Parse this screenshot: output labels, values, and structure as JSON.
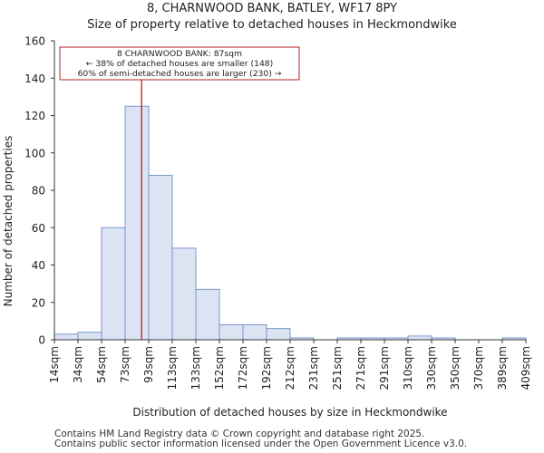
{
  "chart_data": {
    "type": "bar",
    "title": "8, CHARNWOOD BANK, BATLEY, WF17 8PY",
    "subtitle": "Size of property relative to detached houses in Heckmondwike",
    "xlabel": "Distribution of detached houses by size in Heckmondwike",
    "ylabel": "Number of detached properties",
    "ylim": [
      0,
      160
    ],
    "yticks": [
      0,
      20,
      40,
      60,
      80,
      100,
      120,
      140,
      160
    ],
    "tick_labels": [
      "14sqm",
      "34sqm",
      "54sqm",
      "73sqm",
      "93sqm",
      "113sqm",
      "133sqm",
      "152sqm",
      "172sqm",
      "192sqm",
      "212sqm",
      "231sqm",
      "251sqm",
      "271sqm",
      "291sqm",
      "310sqm",
      "330sqm",
      "350sqm",
      "370sqm",
      "389sqm",
      "409sqm"
    ],
    "bin_edges": [
      14,
      34,
      54,
      73,
      93,
      113,
      133,
      152,
      172,
      192,
      212,
      231,
      251,
      271,
      291,
      310,
      330,
      350,
      370,
      389,
      409
    ],
    "values": [
      3,
      4,
      60,
      125,
      88,
      49,
      27,
      8,
      8,
      6,
      1,
      0,
      1,
      1,
      1,
      2,
      1,
      0,
      0,
      1
    ],
    "marker": {
      "value": 87,
      "color": "#b22222",
      "annotation": [
        "8 CHARNWOOD BANK: 87sqm",
        "← 38% of detached houses are smaller (148)",
        "60% of semi-detached houses are larger (230) →"
      ]
    },
    "bar_fill": "#dce4f4",
    "bar_edge": "#6e8fc8",
    "grid": false
  },
  "footer": {
    "line1": "Contains HM Land Registry data © Crown copyright and database right 2025.",
    "line2": "Contains public sector information licensed under the Open Government Licence v3.0."
  }
}
